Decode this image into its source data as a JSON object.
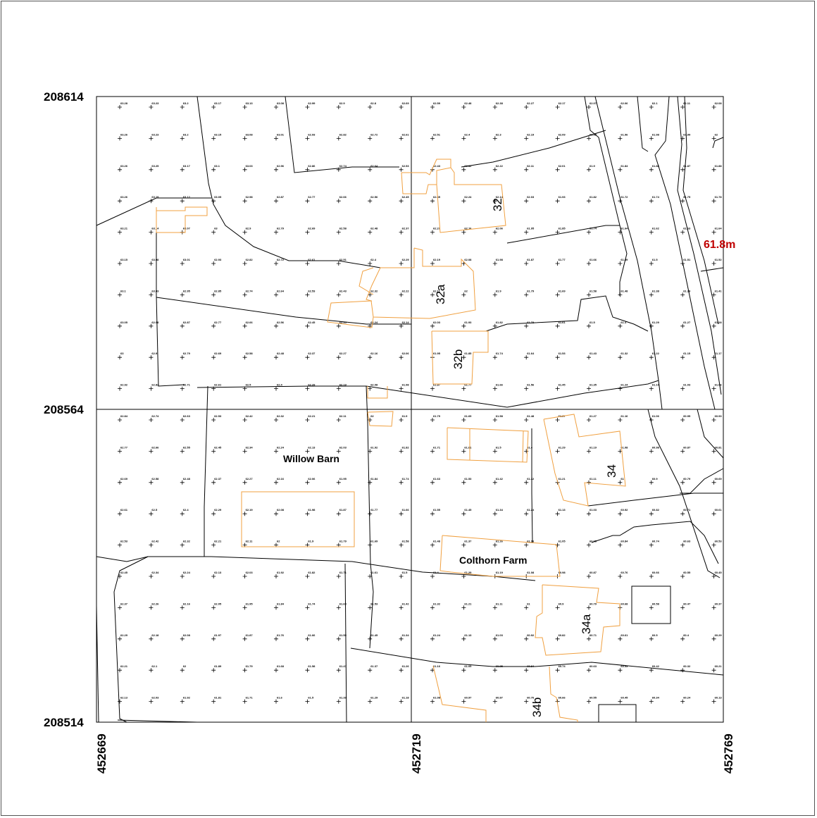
{
  "header": {
    "title_partial": ""
  },
  "coords": {
    "north_top": "208614",
    "north_mid": "208564",
    "north_bottom": "208514",
    "east_left": "452669",
    "east_mid": "452719",
    "east_right": "452769"
  },
  "labels": {
    "willow_barn": "Willow Barn",
    "colthorn_farm": "Colthorn Farm",
    "n32": "32",
    "n32a": "32a",
    "n32b": "32b",
    "n34": "34",
    "n34a": "34a",
    "n34b": "34b"
  },
  "contour_label": "61.8m",
  "colors": {
    "building_outline": "#f0a040",
    "boundary_line": "#000000",
    "contour_text": "#c00000"
  },
  "spot_heights": [
    [
      "63.28",
      "63.23",
      "63.2",
      "63.17",
      "63.13",
      "63.08",
      "62.99",
      "62.9",
      "62.8",
      "62.69",
      "62.59",
      "62.48",
      "62.38",
      "62.27",
      "62.17",
      "62.07",
      "62.06",
      "62.1",
      "62.11",
      "62.08"
    ],
    [
      "63.26",
      "63.23",
      "63.2",
      "63.15",
      "63.08",
      "63.01",
      "62.93",
      "62.82",
      "62.72",
      "62.61",
      "62.51",
      "62.4",
      "62.3",
      "62.19",
      "62.09",
      "61.98",
      "61.96",
      "61.98",
      "61.99",
      "62"
    ],
    [
      "63.26",
      "63.25",
      "63.17",
      "63.1",
      "63.03",
      "62.96",
      "62.86",
      "62.74",
      "62.64",
      "62.53",
      "62.43",
      "62.32",
      "62.22",
      "62.11",
      "62.01",
      "61.9",
      "61.84",
      "61.88",
      "61.87",
      "61.88"
    ],
    [
      "63.26",
      "63.19",
      "63.12",
      "63.05",
      "62.98",
      "62.87",
      "62.77",
      "62.66",
      "62.56",
      "62.45",
      "62.35",
      "62.24",
      "62.14",
      "62.03",
      "61.93",
      "61.82",
      "61.72",
      "61.74",
      "61.75",
      "61.78"
    ],
    [
      "63.21",
      "63.14",
      "63.07",
      "63",
      "62.9",
      "62.79",
      "62.69",
      "62.58",
      "62.48",
      "62.37",
      "62.27",
      "62.16",
      "62.06",
      "61.95",
      "61.85",
      "61.74",
      "61.64",
      "61.62",
      "61.63",
      "61.64"
    ],
    [
      "63.15",
      "63.08",
      "63.01",
      "62.93",
      "62.82",
      "62.72",
      "62.61",
      "62.51",
      "62.4",
      "62.29",
      "62.19",
      "62.08",
      "61.98",
      "61.87",
      "61.77",
      "61.66",
      "61.59",
      "61.5",
      "61.51",
      "61.52"
    ],
    [
      "63.1",
      "63.03",
      "62.95",
      "62.85",
      "62.74",
      "62.64",
      "62.53",
      "62.43",
      "62.32",
      "62.22",
      "62.11",
      "62",
      "61.9",
      "61.79",
      "61.69",
      "61.58",
      "61.48",
      "61.38",
      "61.39",
      "61.41"
    ],
    [
      "63.05",
      "62.98",
      "62.87",
      "62.77",
      "62.66",
      "62.56",
      "62.45",
      "62.35",
      "62.24",
      "62.14",
      "62.03",
      "61.93",
      "61.82",
      "61.72",
      "61.61",
      "61.5",
      "61.4",
      "61.29",
      "61.27",
      "61.28"
    ],
    [
      "63",
      "62.9",
      "62.79",
      "62.69",
      "62.58",
      "62.48",
      "62.37",
      "62.27",
      "62.16",
      "62.06",
      "61.95",
      "61.85",
      "61.74",
      "61.64",
      "61.53",
      "61.43",
      "61.32",
      "61.22",
      "61.15",
      "61.17"
    ],
    [
      "62.92",
      "62.82",
      "62.71",
      "62.61",
      "62.5",
      "62.4",
      "62.29",
      "62.19",
      "62.08",
      "61.98",
      "61.87",
      "61.77",
      "61.66",
      "61.56",
      "61.45",
      "61.35",
      "61.24",
      "61.14",
      "61.03",
      "61.06"
    ],
    [
      "62.84",
      "62.74",
      "62.63",
      "62.53",
      "62.42",
      "62.32",
      "62.21",
      "62.11",
      "62",
      "61.9",
      "61.79",
      "61.69",
      "61.58",
      "61.48",
      "61.37",
      "61.27",
      "61.16",
      "61.06",
      "60.95",
      "60.93"
    ],
    [
      "62.77",
      "62.66",
      "62.55",
      "62.45",
      "62.34",
      "62.24",
      "62.13",
      "62.03",
      "61.92",
      "61.82",
      "61.71",
      "61.61",
      "61.5",
      "61.4",
      "61.29",
      "61.19",
      "61.08",
      "60.98",
      "60.87",
      "60.81"
    ],
    [
      "62.69",
      "62.58",
      "62.48",
      "62.37",
      "62.27",
      "62.16",
      "62.06",
      "61.95",
      "61.84",
      "61.74",
      "61.63",
      "61.53",
      "61.42",
      "61.32",
      "61.21",
      "61.11",
      "61",
      "60.9",
      "60.79",
      "60.69"
    ],
    [
      "62.61",
      "62.5",
      "62.4",
      "62.29",
      "62.19",
      "62.08",
      "61.98",
      "61.87",
      "61.77",
      "61.66",
      "61.55",
      "61.45",
      "61.34",
      "61.24",
      "61.13",
      "61.03",
      "60.92",
      "60.82",
      "60.71",
      "60.61"
    ],
    [
      "62.53",
      "62.42",
      "62.32",
      "62.21",
      "62.11",
      "62",
      "61.9",
      "61.79",
      "61.69",
      "61.58",
      "61.48",
      "61.37",
      "61.26",
      "61.16",
      "61.05",
      "60.95",
      "60.84",
      "60.74",
      "60.63",
      "60.53"
    ],
    [
      "62.45",
      "62.34",
      "62.24",
      "62.13",
      "62.03",
      "61.92",
      "61.82",
      "61.71",
      "61.61",
      "61.5",
      "61.4",
      "61.29",
      "61.19",
      "61.08",
      "60.98",
      "60.87",
      "60.76",
      "60.66",
      "60.55",
      "60.45"
    ],
    [
      "62.37",
      "62.26",
      "62.16",
      "62.05",
      "61.95",
      "61.84",
      "61.74",
      "61.63",
      "61.53",
      "61.42",
      "61.32",
      "61.21",
      "61.11",
      "61",
      "60.9",
      "60.79",
      "60.68",
      "60.58",
      "60.47",
      "60.37"
    ],
    [
      "62.29",
      "62.18",
      "62.08",
      "61.97",
      "61.87",
      "61.76",
      "61.66",
      "61.55",
      "61.45",
      "61.34",
      "61.24",
      "61.13",
      "61.03",
      "60.92",
      "60.82",
      "60.71",
      "60.61",
      "60.5",
      "60.4",
      "60.29"
    ],
    [
      "62.21",
      "62.1",
      "62",
      "61.89",
      "61.79",
      "61.68",
      "61.58",
      "61.47",
      "61.37",
      "61.26",
      "61.16",
      "61.05",
      "60.95",
      "60.84",
      "60.74",
      "60.63",
      "60.53",
      "60.42",
      "60.32",
      "60.21"
    ],
    [
      "62.13",
      "62.03",
      "61.92",
      "61.81",
      "61.71",
      "61.6",
      "61.5",
      "61.39",
      "61.29",
      "61.18",
      "61.08",
      "60.97",
      "60.87",
      "60.76",
      "60.66",
      "60.55",
      "60.45",
      "60.34",
      "60.24",
      "60.13"
    ]
  ]
}
